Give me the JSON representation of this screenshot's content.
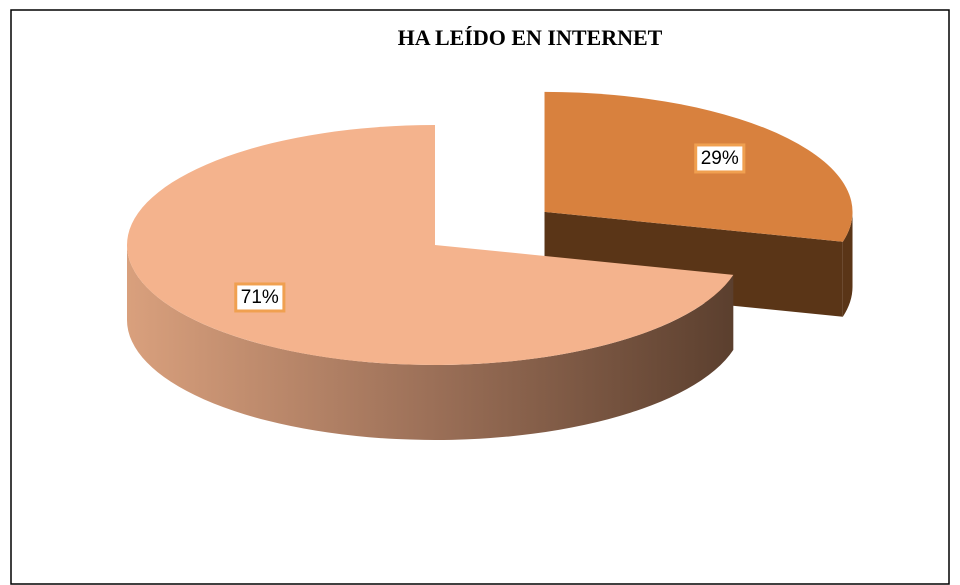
{
  "chart_data": {
    "type": "pie",
    "title": "HA LEÍDO EN INTERNET",
    "values": [
      29,
      71
    ],
    "value_labels": [
      "29%",
      "71%"
    ],
    "colors": [
      "#d8813e",
      "#f4b38d"
    ],
    "side_colors": [
      "#5a3517",
      "#6a4530"
    ],
    "exploded": [
      true,
      false
    ]
  }
}
